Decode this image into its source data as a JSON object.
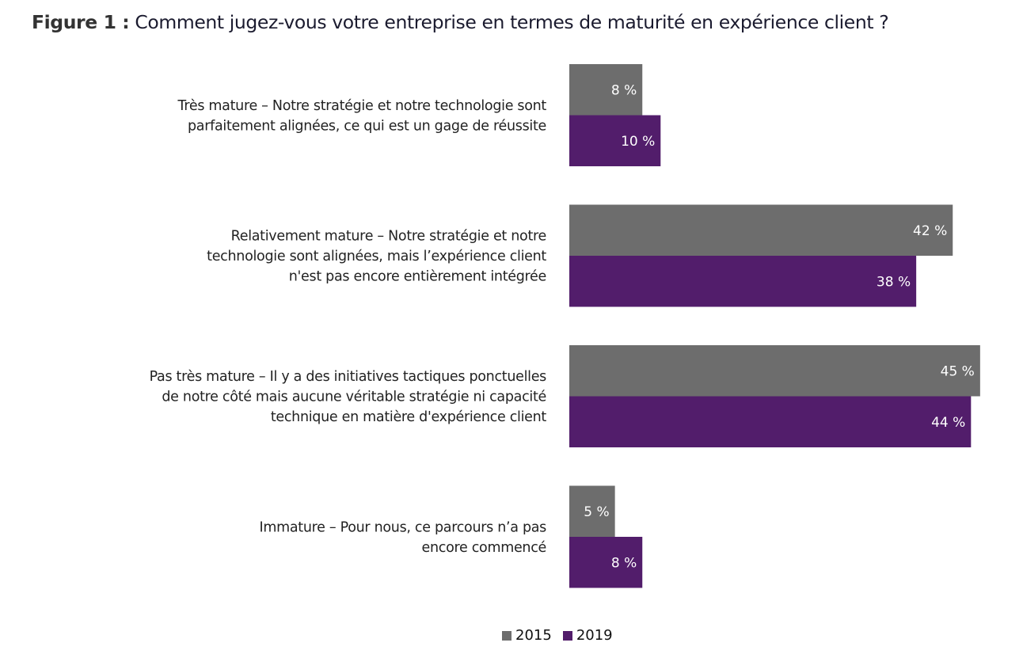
{
  "figure": {
    "prefix": "Figure 1 :",
    "question": " Comment jugez-vous votre entreprise en termes de maturité en expérience client ?"
  },
  "chart_data": {
    "type": "bar",
    "orientation": "horizontal",
    "title": "Figure 1 : Comment jugez-vous votre entreprise en termes de maturité en expérience client ?",
    "xlabel": "",
    "ylabel": "",
    "xlim": [
      0,
      45
    ],
    "grid": false,
    "legend_position": "bottom-center",
    "value_suffix": " %",
    "categories": [
      [
        "Très mature – Notre stratégie et notre technologie sont",
        "parfaitement alignées, ce qui est un gage de réussite"
      ],
      [
        "Relativement mature – Notre stratégie et notre",
        "technologie sont alignées, mais l’expérience client",
        "n'est pas encore entièrement intégrée"
      ],
      [
        "Pas très mature – Il y a des initiatives tactiques ponctuelles",
        "de notre côté mais aucune véritable stratégie ni capacité",
        "technique en matière d'expérience client"
      ],
      [
        "Immature – Pour nous, ce parcours n’a pas",
        "encore commencé"
      ]
    ],
    "series": [
      {
        "name": "2015",
        "color": "#6d6d6d",
        "values": [
          8,
          42,
          45,
          5
        ]
      },
      {
        "name": "2019",
        "color": "#521d6b",
        "values": [
          10,
          38,
          44,
          8
        ]
      }
    ]
  }
}
